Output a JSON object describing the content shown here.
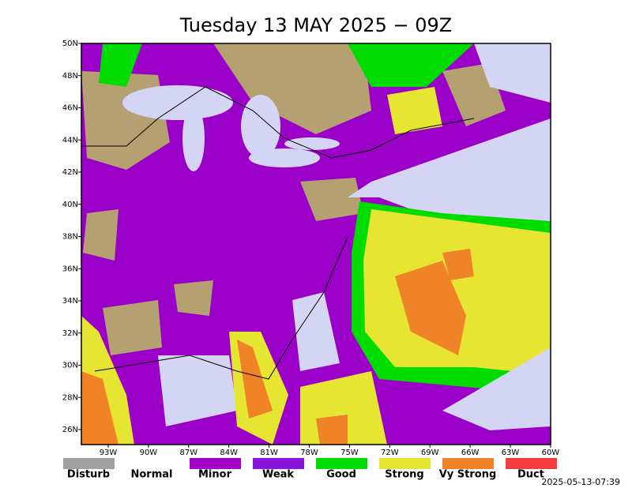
{
  "title": "Tuesday 13 MAY 2025 − 09Z",
  "lat_labels": [
    "50N",
    "48N",
    "46N",
    "44N",
    "42N",
    "40N",
    "38N",
    "36N",
    "34N",
    "32N",
    "30N",
    "28N",
    "26N"
  ],
  "lon_labels": [
    "93W",
    "90W",
    "87W",
    "84W",
    "81W",
    "78W",
    "75W",
    "72W",
    "69W",
    "66W",
    "63W",
    "60W"
  ],
  "legend": [
    {
      "label": "Disturb",
      "color": "#a0a0a0"
    },
    {
      "label": "Normal",
      "color": "#ffffff"
    },
    {
      "label": "Minor",
      "color": "#a000c8"
    },
    {
      "label": "Weak",
      "color": "#8a14dc"
    },
    {
      "label": "Good",
      "color": "#00dc00"
    },
    {
      "label": "Strong",
      "color": "#e6e632"
    },
    {
      "label": "Vy Strong",
      "color": "#f08228"
    },
    {
      "label": "Duct",
      "color": "#f03c3c"
    }
  ],
  "timestamp": "2025-05-13-07:39"
}
